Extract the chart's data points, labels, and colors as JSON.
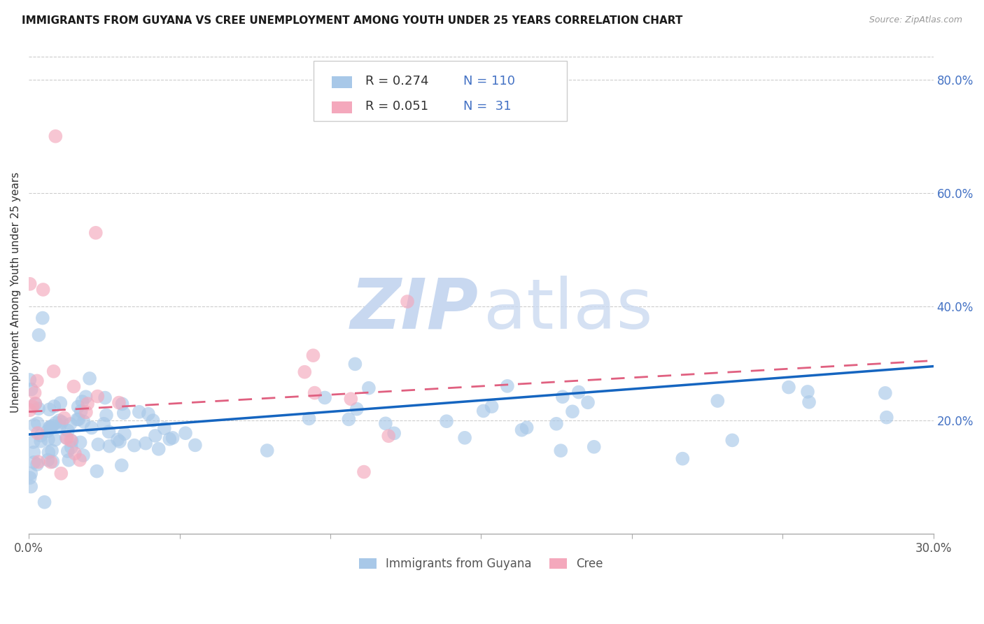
{
  "title": "IMMIGRANTS FROM GUYANA VS CREE UNEMPLOYMENT AMONG YOUTH UNDER 25 YEARS CORRELATION CHART",
  "source": "Source: ZipAtlas.com",
  "ylabel": "Unemployment Among Youth under 25 years",
  "xlim": [
    0.0,
    0.3
  ],
  "ylim": [
    0.0,
    0.85
  ],
  "x_tick_positions": [
    0.0,
    0.05,
    0.1,
    0.15,
    0.2,
    0.25,
    0.3
  ],
  "x_tick_labels": [
    "0.0%",
    "",
    "",
    "",
    "",
    "",
    "30.0%"
  ],
  "y_tick_positions": [
    0.2,
    0.4,
    0.6,
    0.8
  ],
  "y_tick_labels": [
    "20.0%",
    "40.0%",
    "60.0%",
    "80.0%"
  ],
  "legend1_label": "Immigrants from Guyana",
  "legend2_label": "Cree",
  "R1": 0.274,
  "N1": 110,
  "R2": 0.051,
  "N2": 31,
  "color_blue": "#A8C8E8",
  "color_pink": "#F4A8BC",
  "line_blue": "#1565C0",
  "line_pink": "#E06080",
  "blue_line_start_y": 0.175,
  "blue_line_end_y": 0.295,
  "pink_line_start_y": 0.215,
  "pink_line_end_y": 0.305,
  "watermark_zip_color": "#C8D8F0",
  "watermark_atlas_color": "#C8D8F0",
  "title_fontsize": 11,
  "source_fontsize": 9,
  "axis_color": "#AAAAAA",
  "grid_color": "#CCCCCC",
  "right_tick_color": "#4472C4",
  "legend_text_color_black": "#333333",
  "legend_text_color_blue": "#4472C4"
}
